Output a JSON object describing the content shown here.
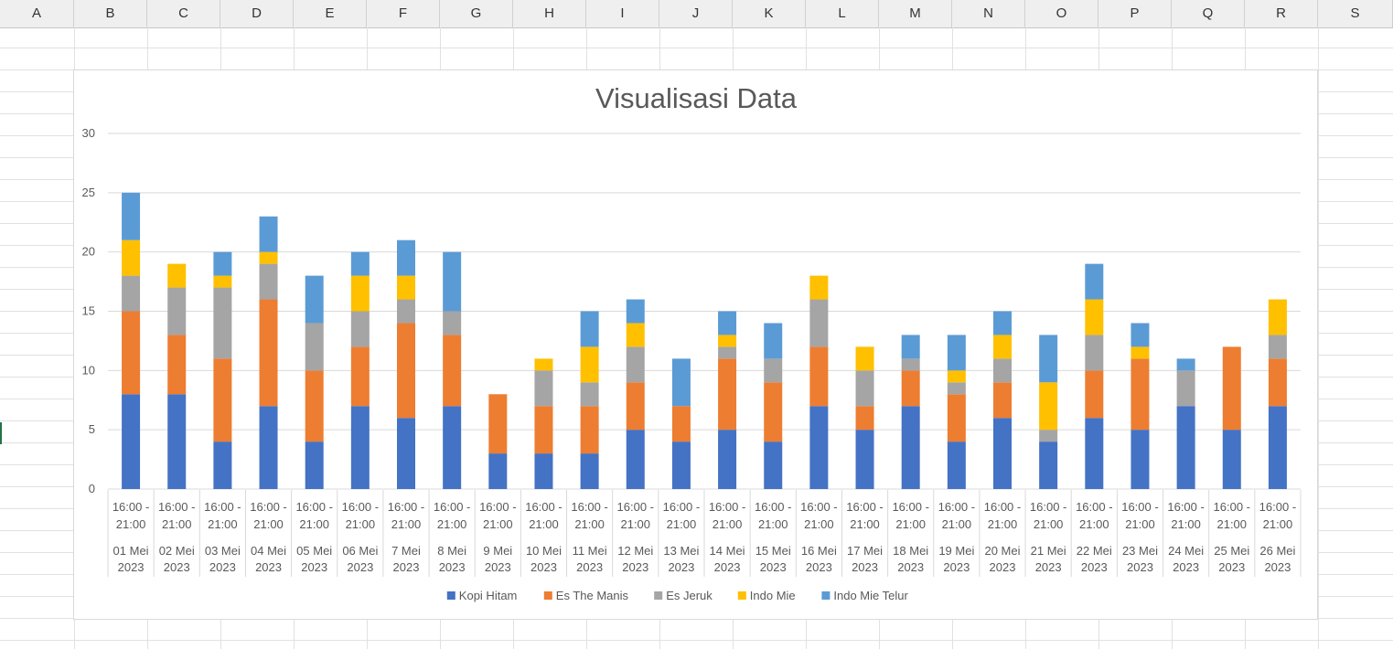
{
  "sheet": {
    "columns": [
      "A",
      "B",
      "C",
      "D",
      "E",
      "F",
      "G",
      "H",
      "I",
      "J",
      "K",
      "L",
      "M",
      "N",
      "O",
      "P",
      "Q",
      "R",
      "S"
    ]
  },
  "colors": {
    "Kopi Hitam": "#4472c4",
    "Es The Manis": "#ed7d31",
    "Es Jeruk": "#a5a5a5",
    "Indo Mie": "#ffc000",
    "Indo Mie Telur": "#5b9bd5"
  },
  "chart_data": {
    "type": "bar",
    "stacked": true,
    "title": "Visualisasi Data",
    "xlabel": "",
    "ylabel": "",
    "ylim": [
      0,
      30
    ],
    "yticks": [
      0,
      5,
      10,
      15,
      20,
      25,
      30
    ],
    "grid": true,
    "legend": "bottom",
    "time_label": "16:00 - 21:00",
    "categories": [
      "01 Mei 2023",
      "02 Mei 2023",
      "03 Mei 2023",
      "04 Mei 2023",
      "05 Mei 2023",
      "06 Mei 2023",
      "7 Mei 2023",
      "8 Mei 2023",
      "9 Mei 2023",
      "10 Mei 2023",
      "11 Mei 2023",
      "12 Mei 2023",
      "13 Mei 2023",
      "14 Mei 2023",
      "15 Mei 2023",
      "16 Mei 2023",
      "17 Mei 2023",
      "18 Mei 2023",
      "19 Mei 2023",
      "20 Mei 2023",
      "21 Mei 2023",
      "22 Mei 2023",
      "23 Mei 2023",
      "24 Mei 2023",
      "25 Mei 2023",
      "26 Mei 2023"
    ],
    "series": [
      {
        "name": "Kopi Hitam",
        "values": [
          8,
          8,
          4,
          7,
          4,
          7,
          6,
          7,
          3,
          3,
          3,
          5,
          4,
          5,
          4,
          7,
          5,
          7,
          4,
          6,
          4,
          6,
          5,
          7,
          5,
          7
        ]
      },
      {
        "name": "Es The Manis",
        "values": [
          7,
          5,
          7,
          9,
          6,
          5,
          8,
          6,
          5,
          4,
          4,
          4,
          3,
          6,
          5,
          5,
          2,
          3,
          4,
          3,
          0,
          4,
          6,
          0,
          7,
          4
        ]
      },
      {
        "name": "Es Jeruk",
        "values": [
          3,
          4,
          6,
          3,
          4,
          3,
          2,
          2,
          0,
          3,
          2,
          3,
          0,
          1,
          2,
          4,
          3,
          1,
          1,
          2,
          1,
          3,
          0,
          3,
          0,
          2
        ]
      },
      {
        "name": "Indo Mie",
        "values": [
          3,
          2,
          1,
          1,
          0,
          3,
          2,
          0,
          0,
          1,
          3,
          2,
          0,
          1,
          0,
          2,
          2,
          0,
          1,
          2,
          4,
          3,
          1,
          0,
          0,
          3
        ]
      },
      {
        "name": "Indo Mie Telur",
        "values": [
          4,
          0,
          2,
          3,
          4,
          2,
          3,
          5,
          0,
          0,
          3,
          2,
          4,
          2,
          3,
          0,
          0,
          2,
          3,
          2,
          4,
          3,
          2,
          1,
          0,
          0
        ]
      }
    ]
  }
}
